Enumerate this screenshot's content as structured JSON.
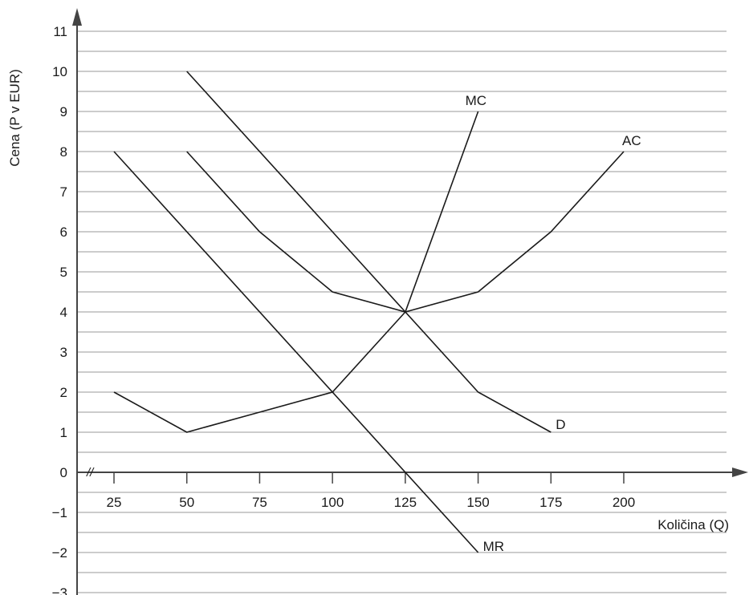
{
  "chart_data": {
    "type": "line",
    "title": "",
    "xlabel": "Količina (Q)",
    "ylabel": "Cena (P v EUR)",
    "xlim": [
      15,
      230
    ],
    "ylim": [
      -3,
      11
    ],
    "x_ticks": [
      25,
      50,
      75,
      100,
      125,
      150,
      175,
      200
    ],
    "y_ticks": [
      -3,
      -2,
      -1,
      0,
      1,
      2,
      3,
      4,
      5,
      6,
      7,
      8,
      9,
      10,
      11
    ],
    "y_tick_labels": [
      "−3",
      "−2",
      "−1",
      "0",
      "1",
      "2",
      "3",
      "4",
      "5",
      "6",
      "7",
      "8",
      "9",
      "10",
      "11"
    ],
    "axis_break": "//",
    "grid": "horizontal, every 0.5",
    "series": [
      {
        "name": "D",
        "x": [
          50,
          100,
          125,
          150,
          175
        ],
        "y": [
          10,
          6,
          4,
          2,
          1
        ]
      },
      {
        "name": "MR",
        "x": [
          25,
          150
        ],
        "y": [
          8,
          -2
        ]
      },
      {
        "name": "AC",
        "x": [
          50,
          75,
          100,
          125,
          150,
          175,
          200
        ],
        "y": [
          8,
          6,
          4.5,
          4,
          4.5,
          6,
          8
        ]
      },
      {
        "name": "MC",
        "x": [
          25,
          50,
          75,
          100,
          125,
          150
        ],
        "y": [
          2,
          1,
          1.5,
          2,
          4,
          9
        ]
      }
    ],
    "series_labels": [
      {
        "text": "MC",
        "at_x": 150,
        "at_y": 9
      },
      {
        "text": "AC",
        "at_x": 200,
        "at_y": 8
      },
      {
        "text": "D",
        "at_x": 175,
        "at_y": 1
      },
      {
        "text": "MR",
        "at_x": 150,
        "at_y": -2
      }
    ]
  }
}
